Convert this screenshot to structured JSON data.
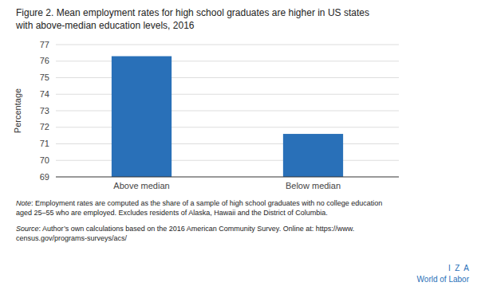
{
  "chart_data": {
    "type": "bar",
    "title": "Figure 2. Mean employment rates for high school graduates are higher in US states",
    "subtitle": "with above-median education levels, 2016",
    "categories": [
      "Above median",
      "Below median"
    ],
    "values": [
      76.3,
      71.6
    ],
    "color": "#2970b8",
    "ylim": [
      69,
      77
    ],
    "yticks": [
      69,
      70,
      71,
      72,
      73,
      74,
      75,
      76,
      77
    ],
    "ylabel": "Percentage",
    "grid": true,
    "annotations": [
      "Note",
      ": Employment rates are computed as the share of a sample of high school graduates with no college education\naged 25–55 who are employed. Excludes residents of Alaska, Hawaii and the District of Columbia.",
      "Source",
      ": Author’s own calculations based on the 2016 American Community Survey. Online at: https://www.\ncensus.gov/programs-surveys/acs/",
      "I  Z  A",
      "World of Labor"
    ]
  }
}
